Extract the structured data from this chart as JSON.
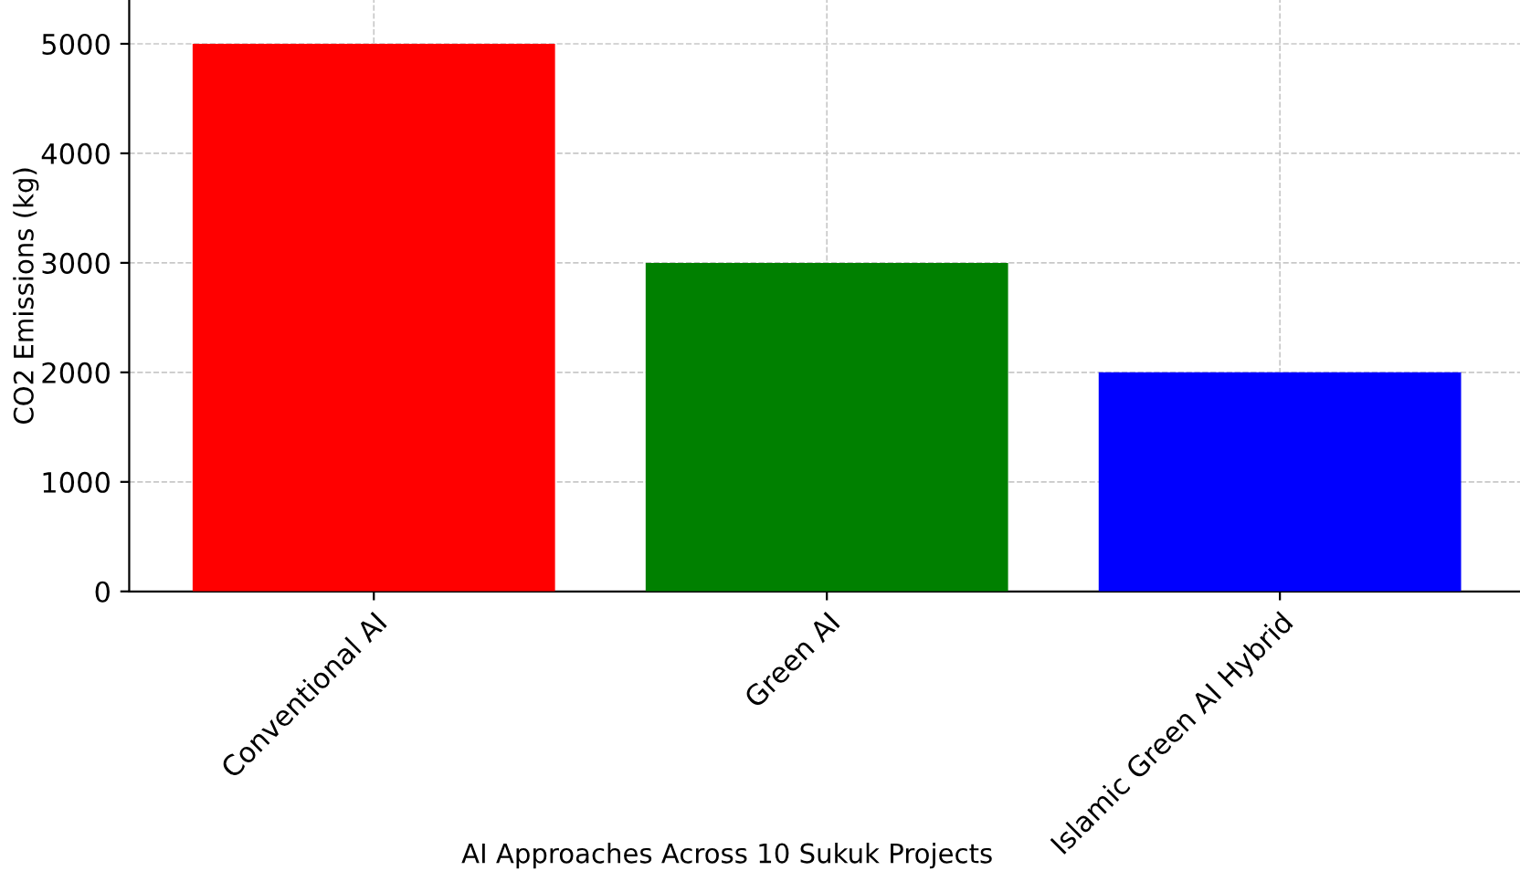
{
  "chart_data": {
    "type": "bar",
    "xlabel": "AI Approaches Across 10 Sukuk Projects",
    "ylabel": "CO2 Emissions (kg)",
    "categories": [
      "Conventional AI",
      "Green AI",
      "Islamic Green AI Hybrid"
    ],
    "values": [
      5000,
      3000,
      2000
    ],
    "colors": [
      "#ff0000",
      "#008000",
      "#0000ff"
    ],
    "ylim": [
      0,
      5400
    ],
    "yticks": [
      0,
      1000,
      2000,
      3000,
      4000,
      5000
    ],
    "grid": true
  }
}
